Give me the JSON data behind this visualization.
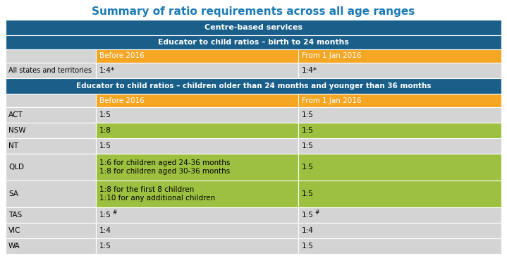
{
  "title": "Summary of ratio requirements across all age ranges",
  "title_color": "#1a7ab5",
  "header1": "Centre-based services",
  "header2": "Educator to child ratios – birth to 24 months",
  "header3": "Educator to child ratios – children older than 24 months and younger than 36 months",
  "col_before": "Before 2016",
  "col_from": "From 1 Jan 2016",
  "section1_row": {
    "label": "All states and territories",
    "before": "1:4*",
    "from": "1:4*"
  },
  "section2_rows": [
    {
      "label": "ACT",
      "before": "1:5",
      "from": "1:5",
      "green": false
    },
    {
      "label": "NSW",
      "before": "1:8",
      "from": "1:5",
      "green": true
    },
    {
      "label": "NT",
      "before": "1:5",
      "from": "1:5",
      "green": false
    },
    {
      "label": "QLD",
      "before": "1:6 for children aged 24-36 months\n1:8 for children aged 30-36 months",
      "from": "1:5",
      "green": true
    },
    {
      "label": "SA",
      "before": "1:8 for the first 8 children\n1:10 for any additional children",
      "from": "1:5",
      "green": true
    },
    {
      "label": "TAS",
      "before": "1:5#",
      "from": "1:5#",
      "green": false
    },
    {
      "label": "VIC",
      "before": "1:4",
      "from": "1:4",
      "green": false
    },
    {
      "label": "WA",
      "before": "1:5",
      "from": "1:5",
      "green": false
    }
  ],
  "bg_color": "#ffffff",
  "gray_bg": "#d4d4d4",
  "orange_bg": "#f5a623",
  "blue_bg": "#1a5f8a",
  "green_bg": "#9dc040",
  "white_border": "#ffffff"
}
